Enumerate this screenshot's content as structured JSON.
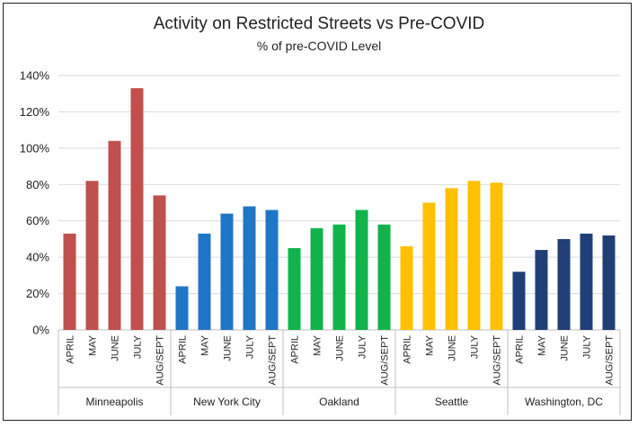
{
  "chart_data": {
    "type": "bar",
    "title": "Activity on Restricted Streets vs Pre-COVID",
    "subtitle": "% of pre-COVID Level",
    "xlabel": "",
    "ylabel": "",
    "ylim": [
      0,
      140
    ],
    "yticks": [
      "0%",
      "20%",
      "40%",
      "60%",
      "80%",
      "100%",
      "120%",
      "140%"
    ],
    "grid": true,
    "categories": [
      "APRIL",
      "MAY",
      "JUNE",
      "JULY",
      "AUG/SEPT"
    ],
    "groups": [
      {
        "name": "Minneapolis",
        "color": "#c0504d",
        "values": [
          53,
          82,
          104,
          133,
          74
        ]
      },
      {
        "name": "New York City",
        "color": "#1f76c6",
        "values": [
          24,
          53,
          64,
          68,
          66
        ]
      },
      {
        "name": "Oakland",
        "color": "#11b34b",
        "values": [
          45,
          56,
          58,
          66,
          58
        ]
      },
      {
        "name": "Seattle",
        "color": "#ffc000",
        "values": [
          46,
          70,
          78,
          82,
          81
        ]
      },
      {
        "name": "Washington, DC",
        "color": "#1f3f76",
        "values": [
          32,
          44,
          50,
          53,
          52
        ]
      }
    ]
  }
}
